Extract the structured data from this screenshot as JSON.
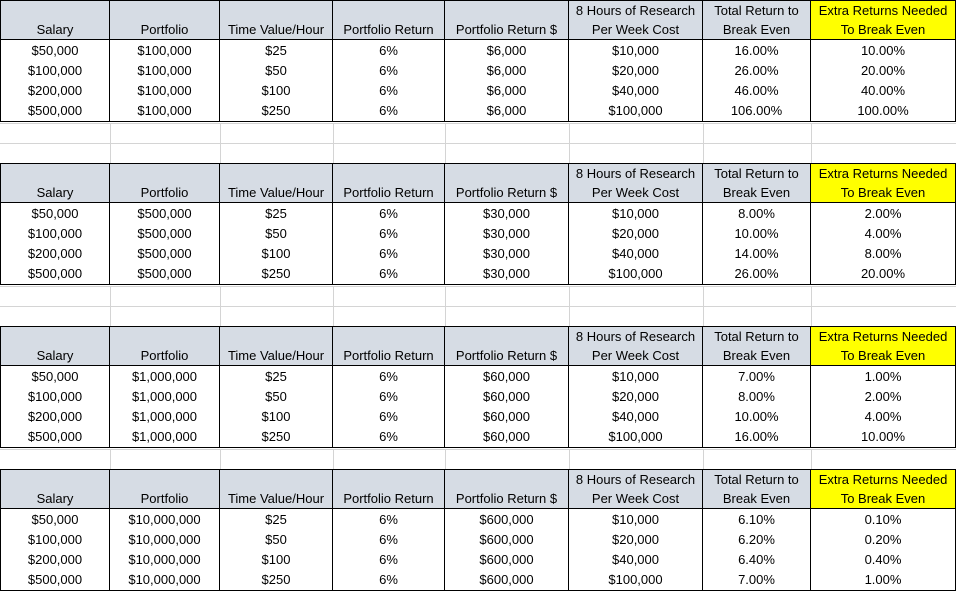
{
  "headers": [
    {
      "top": "",
      "bottom": "Salary",
      "highlight": false
    },
    {
      "top": "",
      "bottom": "Portfolio",
      "highlight": false
    },
    {
      "top": "",
      "bottom": "Time Value/Hour",
      "highlight": false
    },
    {
      "top": "",
      "bottom": "Portfolio Return",
      "highlight": false
    },
    {
      "top": "",
      "bottom": "Portfolio Return $",
      "highlight": false
    },
    {
      "top": "8 Hours of Research",
      "bottom": "Per Week Cost",
      "highlight": false
    },
    {
      "top": "Total Return to",
      "bottom": "Break Even",
      "highlight": false
    },
    {
      "top": "Extra Returns Needed",
      "bottom": "To Break Even",
      "highlight": true
    }
  ],
  "colors": {
    "header_bg": "#d6dce4",
    "highlight": "#ffff00"
  },
  "tables": [
    {
      "rows": [
        [
          "$50,000",
          "$100,000",
          "$25",
          "6%",
          "$6,000",
          "$10,000",
          "16.00%",
          "10.00%"
        ],
        [
          "$100,000",
          "$100,000",
          "$50",
          "6%",
          "$6,000",
          "$20,000",
          "26.00%",
          "20.00%"
        ],
        [
          "$200,000",
          "$100,000",
          "$100",
          "6%",
          "$6,000",
          "$40,000",
          "46.00%",
          "40.00%"
        ],
        [
          "$500,000",
          "$100,000",
          "$250",
          "6%",
          "$6,000",
          "$100,000",
          "106.00%",
          "100.00%"
        ]
      ]
    },
    {
      "rows": [
        [
          "$50,000",
          "$500,000",
          "$25",
          "6%",
          "$30,000",
          "$10,000",
          "8.00%",
          "2.00%"
        ],
        [
          "$100,000",
          "$500,000",
          "$50",
          "6%",
          "$30,000",
          "$20,000",
          "10.00%",
          "4.00%"
        ],
        [
          "$200,000",
          "$500,000",
          "$100",
          "6%",
          "$30,000",
          "$40,000",
          "14.00%",
          "8.00%"
        ],
        [
          "$500,000",
          "$500,000",
          "$250",
          "6%",
          "$30,000",
          "$100,000",
          "26.00%",
          "20.00%"
        ]
      ]
    },
    {
      "rows": [
        [
          "$50,000",
          "$1,000,000",
          "$25",
          "6%",
          "$60,000",
          "$10,000",
          "7.00%",
          "1.00%"
        ],
        [
          "$100,000",
          "$1,000,000",
          "$50",
          "6%",
          "$60,000",
          "$20,000",
          "8.00%",
          "2.00%"
        ],
        [
          "$200,000",
          "$1,000,000",
          "$100",
          "6%",
          "$60,000",
          "$40,000",
          "10.00%",
          "4.00%"
        ],
        [
          "$500,000",
          "$1,000,000",
          "$250",
          "6%",
          "$60,000",
          "$100,000",
          "16.00%",
          "10.00%"
        ]
      ]
    },
    {
      "rows": [
        [
          "$50,000",
          "$10,000,000",
          "$25",
          "6%",
          "$600,000",
          "$10,000",
          "6.10%",
          "0.10%"
        ],
        [
          "$100,000",
          "$10,000,000",
          "$50",
          "6%",
          "$600,000",
          "$20,000",
          "6.20%",
          "0.20%"
        ],
        [
          "$200,000",
          "$10,000,000",
          "$100",
          "6%",
          "$600,000",
          "$40,000",
          "6.40%",
          "0.40%"
        ],
        [
          "$500,000",
          "$10,000,000",
          "$250",
          "6%",
          "$600,000",
          "$100,000",
          "7.00%",
          "1.00%"
        ]
      ]
    }
  ]
}
